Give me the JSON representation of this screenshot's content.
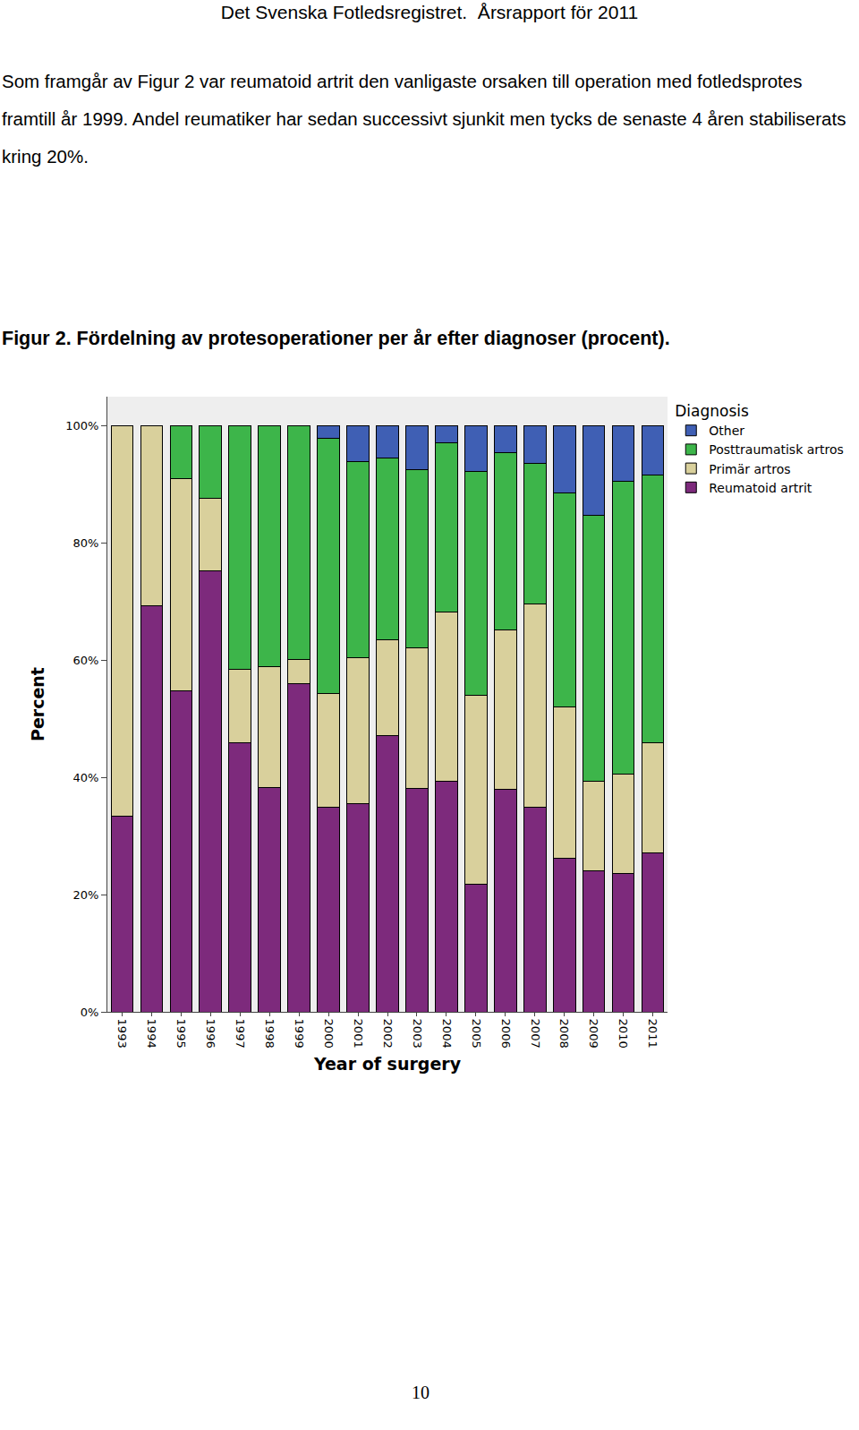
{
  "header": "Det Svenska Fotledsregistret.  Årsrapport för 2011",
  "paragraph": "Som framgår av Figur 2 var reumatoid artrit den vanligaste orsaken till operation med fotledsprotes framtill år 1999. Andel reumatiker har sedan successivt sjunkit men tycks de senaste 4 åren stabiliserats kring 20%.",
  "caption": "Figur 2. Fördelning av protesoperationer per år efter diagnoser (procent).",
  "page_number": "10",
  "chart_data": {
    "type": "bar",
    "stacked": true,
    "x_label": "Year of surgery",
    "y_label": "Percent",
    "legend_title": "Diagnosis",
    "legend": "right",
    "grid": false,
    "categories": [
      "1993",
      "1994",
      "1995",
      "1996",
      "1997",
      "1998",
      "1999",
      "2000",
      "2001",
      "2002",
      "2003",
      "2004",
      "2005",
      "2006",
      "2007",
      "2008",
      "2009",
      "2010",
      "2011"
    ],
    "ylim": [
      0,
      105
    ],
    "yticks": [
      {
        "value": 0,
        "label": "0%"
      },
      {
        "value": 20,
        "label": "20%"
      },
      {
        "value": 40,
        "label": "40%"
      },
      {
        "value": 60,
        "label": "60%"
      },
      {
        "value": 80,
        "label": "80%"
      },
      {
        "value": 100,
        "label": "100%"
      }
    ],
    "series": [
      {
        "name": "Reumatoid artrit",
        "color": "#7d2a7c",
        "values": [
          33.4,
          69.3,
          54.8,
          75.2,
          46.0,
          38.3,
          56.0,
          35.0,
          35.6,
          47.2,
          38.2,
          39.4,
          21.8,
          38.0,
          35.0,
          26.2,
          24.1,
          23.6,
          27.1
        ]
      },
      {
        "name": "Primär artros",
        "color": "#d9d09c",
        "values": [
          66.6,
          30.7,
          36.2,
          12.4,
          12.4,
          20.6,
          4.1,
          19.4,
          24.8,
          16.3,
          23.9,
          28.9,
          32.2,
          27.2,
          34.6,
          25.9,
          15.3,
          17.0,
          18.9
        ]
      },
      {
        "name": "Posttraumatisk artros",
        "color": "#3db54a",
        "values": [
          0,
          0,
          9.0,
          12.4,
          41.6,
          41.1,
          39.9,
          43.5,
          33.5,
          31.1,
          30.4,
          28.8,
          38.3,
          30.2,
          24.0,
          36.4,
          45.3,
          50.0,
          45.7
        ]
      },
      {
        "name": "Other",
        "color": "#3f5fb4",
        "values": [
          0,
          0,
          0,
          0,
          0,
          0,
          0,
          2.1,
          6.1,
          5.4,
          7.5,
          2.9,
          7.7,
          4.6,
          6.4,
          11.5,
          15.3,
          9.4,
          8.3
        ]
      }
    ]
  }
}
